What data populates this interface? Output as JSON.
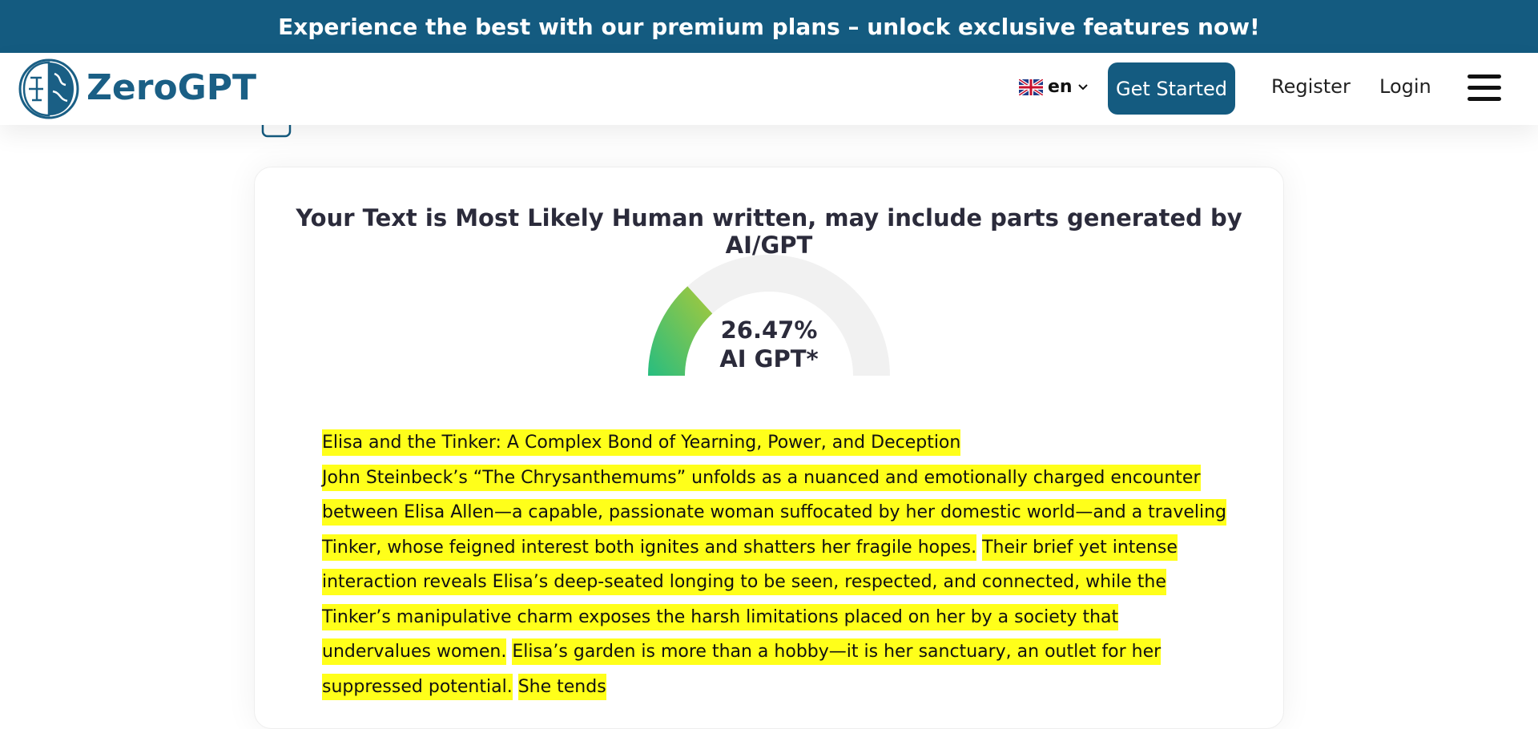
{
  "banner": "Experience the best with our premium plans – unlock exclusive features now!",
  "nav": {
    "logo": "ZeroGPT",
    "language": "en",
    "get_started": "Get Started",
    "register": "Register",
    "login": "Login"
  },
  "result": {
    "title": "Your Text is Most Likely Human written, may include parts generated by AI/GPT",
    "score": 26.47,
    "score_label": "26.47%",
    "caption": "AI GPT*",
    "heading": "Elisa and the Tinker: A Complex Bond of Yearning, Power, and Deception",
    "sentences": [
      "John Steinbeck’s “The Chrysanthemums” unfolds as a nuanced and emotionally charged encounter between Elisa Allen—a capable, passionate woman suffocated by her domestic world—and a traveling Tinker, whose feigned interest both ignites and shatters her fragile hopes.",
      "Their brief yet intense interaction reveals Elisa’s deep-seated longing to be seen, respected, and connected, while the Tinker’s manipulative charm exposes the harsh limitations placed on her by a society that undervalues women.",
      "Elisa’s garden is more than a hobby—it is her sanctuary, an outlet for her suppressed potential.",
      "She tends"
    ]
  }
}
